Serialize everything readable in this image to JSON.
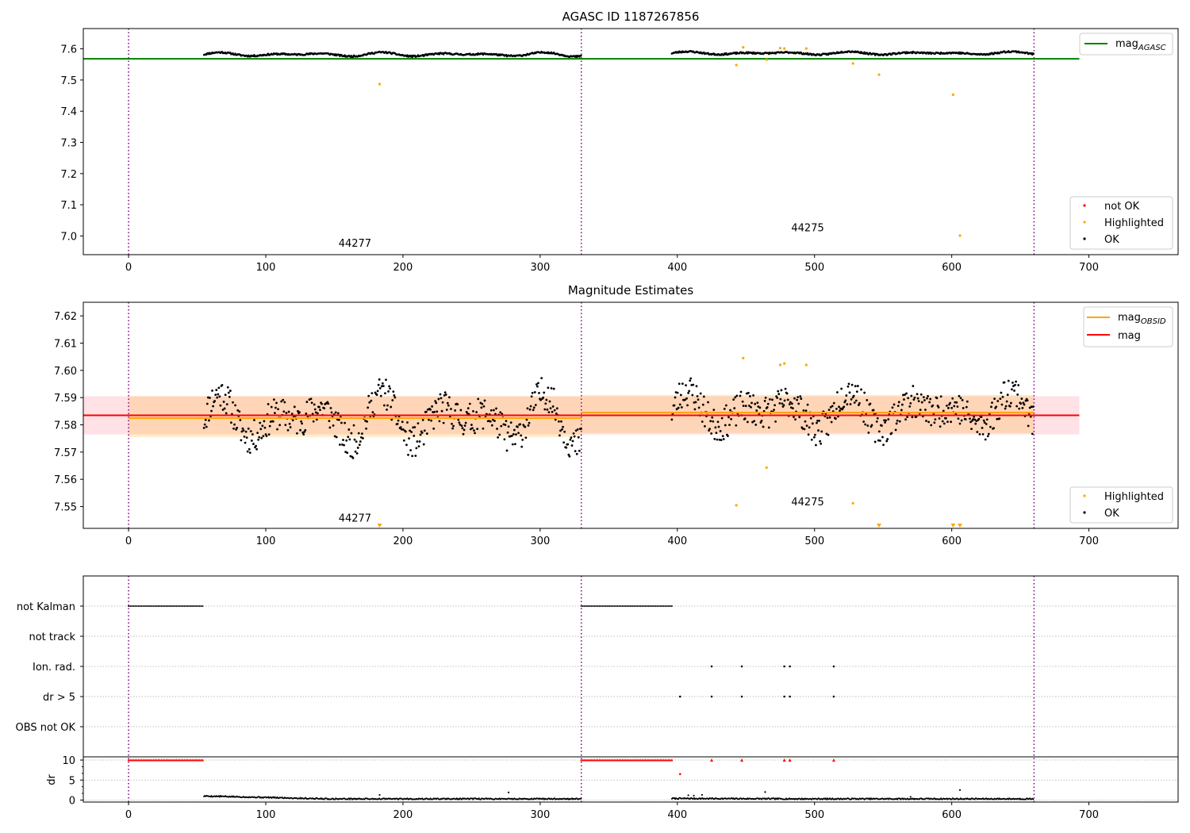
{
  "chart_data": [
    {
      "id": "agasc",
      "type": "scatter",
      "title": "AGASC ID 1187267856",
      "xlim": [
        -33,
        765
      ],
      "ylim": [
        6.94,
        7.665
      ],
      "xticks": [
        0,
        100,
        200,
        300,
        400,
        500,
        600,
        700
      ],
      "yticks": [
        7.0,
        7.1,
        7.2,
        7.3,
        7.4,
        7.5,
        7.6
      ],
      "ytick_labels": [
        "7.0",
        "7.1",
        "7.2",
        "7.3",
        "7.4",
        "7.5",
        "7.6"
      ],
      "obs_boundaries": [
        0,
        330,
        660
      ],
      "obsids": [
        {
          "label": "44277",
          "x": 165,
          "y": 6.965
        },
        {
          "label": "44275",
          "x": 495,
          "y": 7.015
        }
      ],
      "segments": [
        {
          "x_start": 55,
          "x_end": 330,
          "base": 7.582,
          "amp": 0.01,
          "noise": 0.004,
          "step": 0.6,
          "seed": 11
        },
        {
          "x_start": 396,
          "x_end": 660,
          "base": 7.586,
          "amp": 0.008,
          "noise": 0.004,
          "step": 0.6,
          "seed": 23
        }
      ],
      "highlighted_points": [
        [
          183,
          7.487
        ],
        [
          443,
          7.548
        ],
        [
          448,
          7.605
        ],
        [
          465,
          7.565
        ],
        [
          475,
          7.602
        ],
        [
          478,
          7.601
        ],
        [
          494,
          7.601
        ],
        [
          528,
          7.553
        ],
        [
          547,
          7.517
        ],
        [
          601,
          7.453
        ],
        [
          606,
          7.001
        ]
      ],
      "series": [
        {
          "name": "mag_AGASC",
          "value": 7.568,
          "x_range": [
            -33,
            693
          ],
          "color": "#008000"
        }
      ],
      "legend_lines": [
        {
          "label": "mag",
          "subscript": "AGASC",
          "color": "#008000"
        }
      ],
      "legend_points": [
        {
          "label": "not OK",
          "color": "#ff0000"
        },
        {
          "label": "Highlighted",
          "color": "#ffa500"
        },
        {
          "label": "OK",
          "color": "#000000"
        }
      ]
    },
    {
      "id": "estimates",
      "type": "scatter",
      "title": "Magnitude Estimates",
      "xlim": [
        -33,
        765
      ],
      "ylim": [
        7.542,
        7.625
      ],
      "xticks": [
        0,
        100,
        200,
        300,
        400,
        500,
        600,
        700
      ],
      "yticks": [
        7.55,
        7.56,
        7.57,
        7.58,
        7.59,
        7.6,
        7.61,
        7.62
      ],
      "ytick_labels": [
        "7.55",
        "7.56",
        "7.57",
        "7.58",
        "7.59",
        "7.60",
        "7.61",
        "7.62"
      ],
      "obs_boundaries": [
        0,
        330,
        660
      ],
      "obsids": [
        {
          "label": "44277",
          "x": 165,
          "y": 7.5445
        },
        {
          "label": "44275",
          "x": 495,
          "y": 7.5505
        }
      ],
      "segments": [
        {
          "x_start": 55,
          "x_end": 330,
          "base": 7.582,
          "amp": 0.01,
          "noise": 0.006,
          "step": 0.6,
          "seed": 11
        },
        {
          "x_start": 396,
          "x_end": 660,
          "base": 7.585,
          "amp": 0.008,
          "noise": 0.006,
          "step": 0.6,
          "seed": 23
        }
      ],
      "highlighted_points": [
        [
          443,
          7.5505
        ],
        [
          448,
          7.6045
        ],
        [
          465,
          7.5643
        ],
        [
          475,
          7.602
        ],
        [
          478,
          7.6025
        ],
        [
          494,
          7.602
        ],
        [
          528,
          7.5512
        ]
      ],
      "offscale_markers": [
        183,
        547,
        601,
        606
      ],
      "mag_band": {
        "center": 7.5835,
        "lo": 7.5765,
        "hi": 7.5905,
        "x_range": [
          -33,
          693
        ]
      },
      "obs_bands": [
        {
          "x_range": [
            0,
            330
          ],
          "mag": 7.5825,
          "lo": 7.5755,
          "hi": 7.5905
        },
        {
          "x_range": [
            330,
            660
          ],
          "mag": 7.5845,
          "lo": 7.577,
          "hi": 7.591
        }
      ],
      "legend_lines": [
        {
          "label": "mag",
          "subscript": "OBSID",
          "color": "#ffa500"
        },
        {
          "label": "mag",
          "subscript": "",
          "color": "#ff0000"
        }
      ],
      "legend_points": [
        {
          "label": "Highlighted",
          "color": "#ffa500"
        },
        {
          "label": "OK",
          "color": "#000000"
        }
      ]
    },
    {
      "id": "flags",
      "type": "scatter",
      "xlim": [
        -33,
        765
      ],
      "obs_boundaries": [
        0,
        330,
        660
      ],
      "categories": [
        "not Kalman",
        "not track",
        "Ion. rad.",
        "dr > 5",
        "OBS not OK"
      ],
      "not_kalman_ranges": [
        [
          0,
          55
        ],
        [
          330,
          396
        ]
      ],
      "ion_rad_x": [
        425,
        447,
        478,
        482,
        514
      ],
      "dr_gt_5_x": [
        402,
        425,
        447,
        478,
        482,
        514
      ]
    },
    {
      "id": "dr",
      "type": "scatter",
      "ylabel": "dr",
      "xlim": [
        -33,
        765
      ],
      "ylim": [
        -0.5,
        10.8
      ],
      "yticks": [
        0,
        5,
        10
      ],
      "xticks": [
        0,
        100,
        200,
        300,
        400,
        500,
        600,
        700
      ],
      "obs_boundaries": [
        0,
        330,
        660
      ],
      "capped_ranges": [
        [
          0,
          55
        ],
        [
          330,
          396
        ]
      ],
      "capped_x": [
        425,
        447,
        478,
        482,
        514
      ],
      "dr_segments": [
        {
          "x_start": 55,
          "x_end": 330,
          "base": 1.0,
          "drift_to": 0.3,
          "noise": 0.15,
          "step": 0.6,
          "seed": 5
        },
        {
          "x_start": 396,
          "x_end": 660,
          "base": 0.4,
          "drift_to": 0.3,
          "noise": 0.15,
          "step": 0.6,
          "seed": 7
        }
      ],
      "dr_extra_points": [
        [
          402,
          6.5
        ],
        [
          405,
          0.4
        ],
        [
          408,
          1.2
        ],
        [
          412,
          1.1
        ],
        [
          418,
          1.3
        ],
        [
          183,
          1.3
        ],
        [
          277,
          1.9
        ],
        [
          464,
          2.0
        ],
        [
          570,
          0.8
        ],
        [
          606,
          2.5
        ]
      ]
    }
  ]
}
